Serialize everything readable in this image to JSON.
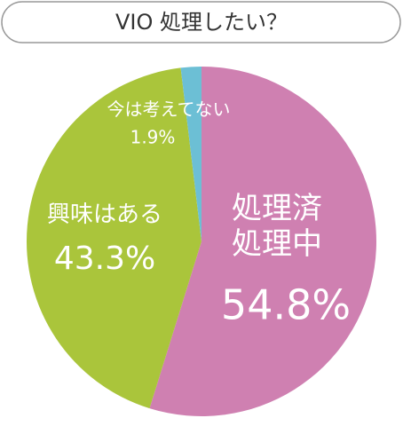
{
  "chart_data": {
    "type": "pie",
    "title": "VIO 処理したい？",
    "categories": [
      "処理済\n処理中",
      "興味はある",
      "今は考えてない"
    ],
    "values": [
      54.8,
      43.3,
      1.9
    ],
    "value_labels": [
      "54.8%",
      "43.3%",
      "1.9%"
    ],
    "colors": [
      "#cf80b1",
      "#aac53b",
      "#6cbfd5"
    ]
  }
}
